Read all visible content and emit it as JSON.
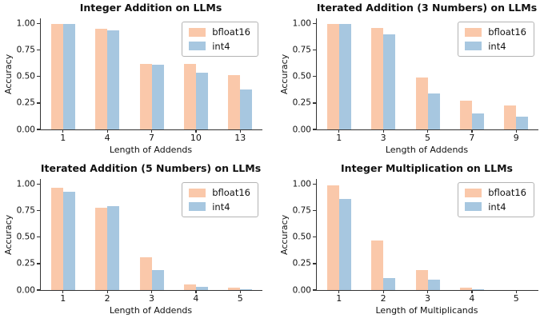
{
  "figure": {
    "background": "#ffffff",
    "text_color": "#111111",
    "spine_color": "#333333"
  },
  "chart_data": [
    {
      "type": "bar",
      "title": "Integer Addition on LLMs",
      "xlabel": "Length of Addends",
      "ylabel": "Accuracy",
      "categories": [
        "1",
        "4",
        "7",
        "10",
        "13"
      ],
      "yticks": [
        0,
        0.25,
        0.5,
        0.75,
        1.0
      ],
      "ytick_labels": [
        "0.00",
        "0.25",
        "0.50",
        "0.75",
        "1.00"
      ],
      "ylim": [
        0,
        1.05
      ],
      "grid": false,
      "legend": {
        "position": "upper right",
        "entries": [
          "bfloat16",
          "int4"
        ]
      },
      "series": [
        {
          "name": "bfloat16",
          "color": "#FAC8AA",
          "values": [
            1.0,
            0.95,
            0.62,
            0.62,
            0.51
          ]
        },
        {
          "name": "int4",
          "color": "#A7C7E0",
          "values": [
            1.0,
            0.94,
            0.61,
            0.54,
            0.38
          ]
        }
      ]
    },
    {
      "type": "bar",
      "title": "Iterated Addition (3 Numbers) on LLMs",
      "xlabel": "Length of Addends",
      "ylabel": "Accuracy",
      "categories": [
        "1",
        "3",
        "5",
        "7",
        "9"
      ],
      "yticks": [
        0,
        0.25,
        0.5,
        0.75,
        1.0
      ],
      "ytick_labels": [
        "0.00",
        "0.25",
        "0.50",
        "0.75",
        "1.00"
      ],
      "ylim": [
        0,
        1.05
      ],
      "grid": false,
      "legend": {
        "position": "upper right",
        "entries": [
          "bfloat16",
          "int4"
        ]
      },
      "series": [
        {
          "name": "bfloat16",
          "color": "#FAC8AA",
          "values": [
            1.0,
            0.96,
            0.49,
            0.27,
            0.23
          ]
        },
        {
          "name": "int4",
          "color": "#A7C7E0",
          "values": [
            1.0,
            0.9,
            0.34,
            0.15,
            0.12
          ]
        }
      ]
    },
    {
      "type": "bar",
      "title": "Iterated Addition (5 Numbers) on LLMs",
      "xlabel": "Length of Addends",
      "ylabel": "Accuracy",
      "categories": [
        "1",
        "2",
        "3",
        "4",
        "5"
      ],
      "yticks": [
        0,
        0.25,
        0.5,
        0.75,
        1.0
      ],
      "ytick_labels": [
        "0.00",
        "0.25",
        "0.50",
        "0.75",
        "1.00"
      ],
      "ylim": [
        0,
        1.05
      ],
      "grid": false,
      "legend": {
        "position": "upper right",
        "entries": [
          "bfloat16",
          "int4"
        ]
      },
      "series": [
        {
          "name": "bfloat16",
          "color": "#FAC8AA",
          "values": [
            0.97,
            0.78,
            0.31,
            0.05,
            0.02
          ]
        },
        {
          "name": "int4",
          "color": "#A7C7E0",
          "values": [
            0.93,
            0.79,
            0.19,
            0.03,
            0.01
          ]
        }
      ]
    },
    {
      "type": "bar",
      "title": "Integer Multiplication on LLMs",
      "xlabel": "Length of Multiplicands",
      "ylabel": "Accuracy",
      "categories": [
        "1",
        "2",
        "3",
        "4",
        "5"
      ],
      "yticks": [
        0,
        0.25,
        0.5,
        0.75,
        1.0
      ],
      "ytick_labels": [
        "0.00",
        "0.25",
        "0.50",
        "0.75",
        "1.00"
      ],
      "ylim": [
        0,
        1.05
      ],
      "grid": false,
      "legend": {
        "position": "upper right",
        "entries": [
          "bfloat16",
          "int4"
        ]
      },
      "series": [
        {
          "name": "bfloat16",
          "color": "#FAC8AA",
          "values": [
            0.99,
            0.47,
            0.19,
            0.02,
            0.0
          ]
        },
        {
          "name": "int4",
          "color": "#A7C7E0",
          "values": [
            0.86,
            0.11,
            0.1,
            0.01,
            0.0
          ]
        }
      ]
    }
  ]
}
